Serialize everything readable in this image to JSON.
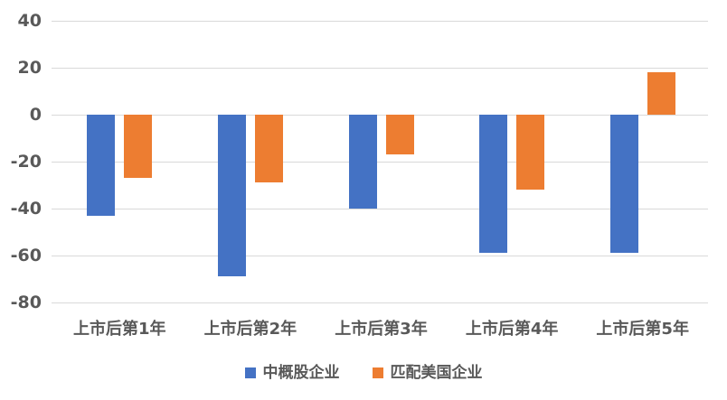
{
  "chart_data": {
    "type": "bar",
    "title": "",
    "categories": [
      "上市后第1年",
      "上市后第2年",
      "上市后第3年",
      "上市后第4年",
      "上市后第5年"
    ],
    "series": [
      {
        "name": "中概股企业",
        "color": "#4472C4",
        "values": [
          -43,
          -69,
          -40,
          -59,
          -59
        ]
      },
      {
        "name": "匹配美国企业",
        "color": "#ED7D31",
        "values": [
          -27,
          -29,
          -17,
          -32,
          18
        ]
      }
    ],
    "ylim": [
      -80,
      40
    ],
    "yticks": [
      40,
      20,
      0,
      -20,
      -40,
      -60,
      -80
    ],
    "grid": true,
    "legend_position": "bottom",
    "gridline_color": "#D9D9D9",
    "axis_label_color": "#595959",
    "background": "#FFFFFF"
  }
}
